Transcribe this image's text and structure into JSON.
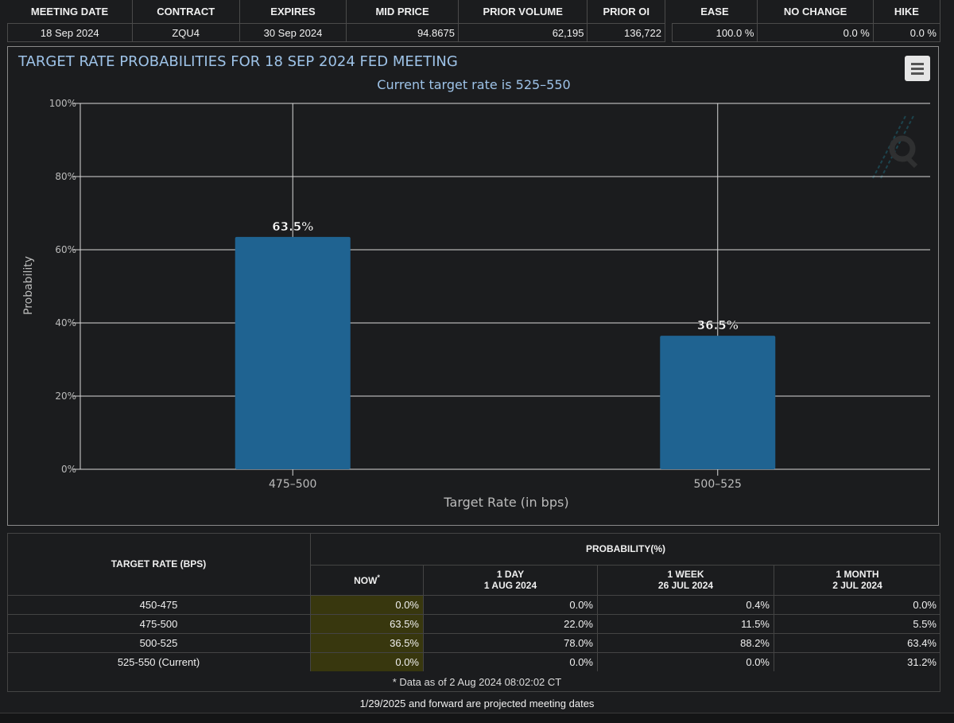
{
  "header": {
    "columns": [
      "MEETING DATE",
      "CONTRACT",
      "EXPIRES",
      "MID PRICE",
      "PRIOR VOLUME",
      "PRIOR OI"
    ],
    "row": {
      "meeting_date": "18 Sep 2024",
      "contract": "ZQU4",
      "expires": "30 Sep 2024",
      "mid_price": "94.8675",
      "prior_volume": "62,195",
      "prior_oi": "136,722"
    },
    "prob_columns": [
      "EASE",
      "NO CHANGE",
      "HIKE"
    ],
    "prob_row": {
      "ease": "100.0 %",
      "no_change": "0.0 %",
      "hike": "0.0 %"
    }
  },
  "chart": {
    "menu_icon": "hamburger-menu-icon",
    "watermark_icon": "q-logo-icon"
  },
  "chart_data": {
    "type": "bar",
    "title": "TARGET RATE PROBABILITIES FOR 18 SEP 2024 FED MEETING",
    "subtitle": "Current target rate is 525–550",
    "xlabel": "Target Rate (in bps)",
    "ylabel": "Probability",
    "categories": [
      "475–500",
      "500–525"
    ],
    "values": [
      63.5,
      36.5
    ],
    "data_labels": [
      "63.5%",
      "36.5%"
    ],
    "ylim": [
      0,
      100
    ],
    "yticks": [
      "0%",
      "20%",
      "40%",
      "60%",
      "80%",
      "100%"
    ],
    "grid": true,
    "bar_color": "#1f6391"
  },
  "prob_table": {
    "row_header": "TARGET RATE (BPS)",
    "group_header": "PROBABILITY(%)",
    "now_label": "NOW",
    "now_mark": "*",
    "col1_line1": "1 DAY",
    "col1_line2": "1 AUG 2024",
    "col2_line1": "1 WEEK",
    "col2_line2": "26 JUL 2024",
    "col3_line1": "1 MONTH",
    "col3_line2": "2 JUL 2024",
    "rows": [
      {
        "rate": "450-475",
        "now": "0.0%",
        "day": "0.0%",
        "week": "0.4%",
        "month": "0.0%"
      },
      {
        "rate": "475-500",
        "now": "63.5%",
        "day": "22.0%",
        "week": "11.5%",
        "month": "5.5%"
      },
      {
        "rate": "500-525",
        "now": "36.5%",
        "day": "78.0%",
        "week": "88.2%",
        "month": "63.4%"
      },
      {
        "rate": "525-550 (Current)",
        "now": "0.0%",
        "day": "0.0%",
        "week": "0.0%",
        "month": "31.2%"
      }
    ],
    "data_note": "* Data as of 2 Aug 2024 08:02:02 CT"
  },
  "footer_note": "1/29/2025 and forward are projected meeting dates"
}
